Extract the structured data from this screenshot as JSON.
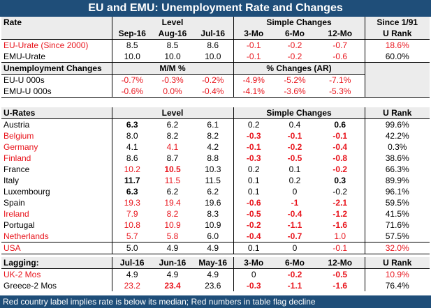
{
  "title": "EU and EMU: Unemployment Rate and Changes",
  "footer": "Red country label implies rate is below its median; Red numbers in table flag decline",
  "colors": {
    "header_bg": "#1f4e79",
    "red": "#e8141c",
    "shade": "#ececec",
    "gray_block": "#7f7f7f"
  },
  "sec1": {
    "h": [
      "Rate",
      "Level",
      "Simple Changes",
      "Since 1/91"
    ],
    "h2": [
      "",
      "Sep-16",
      "Aug-16",
      "Jul-16",
      "3-Mo",
      "6-Mo",
      "12-Mo",
      "U Rank"
    ],
    "rows": [
      [
        "EU-Urate (Since 2000)",
        "8.5",
        "8.5",
        "8.6",
        "-0.1",
        "-0.2",
        "-0.7",
        "18.6%"
      ],
      [
        "EMU-Urate",
        "10.0",
        "10.0",
        "10.0",
        "-0.1",
        "-0.2",
        "-0.6",
        "60.0%"
      ]
    ]
  },
  "sec2": {
    "h": [
      "Unemployment Changes",
      "M/M %",
      "% Changes (AR)"
    ],
    "rows": [
      [
        "EU-U 000s",
        "-0.7%",
        "-0.3%",
        "-0.2%",
        "-4.9%",
        "-5.2%",
        "-7.1%"
      ],
      [
        "EMU-U 000s",
        "-0.6%",
        "0.0%",
        "-0.4%",
        "-4.1%",
        "-3.6%",
        "-5.3%"
      ]
    ]
  },
  "sec3": {
    "h": [
      "U-Rates",
      "Level",
      "Simple Changes",
      "U Rank"
    ],
    "rows": [
      [
        "Austria",
        "6.3",
        "6.2",
        "6.1",
        "0.2",
        "0.4",
        "0.6",
        "99.6%"
      ],
      [
        "Belgium",
        "8.0",
        "8.2",
        "8.2",
        "-0.3",
        "-0.1",
        "-0.1",
        "42.2%"
      ],
      [
        "Germany",
        "4.1",
        "4.1",
        "4.2",
        "-0.1",
        "-0.2",
        "-0.4",
        "0.3%"
      ],
      [
        "Finland",
        "8.6",
        "8.7",
        "8.8",
        "-0.3",
        "-0.5",
        "-0.8",
        "38.6%"
      ],
      [
        "France",
        "10.2",
        "10.5",
        "10.3",
        "0.2",
        "0.1",
        "-0.2",
        "66.3%"
      ],
      [
        "Italy",
        "11.7",
        "11.5",
        "11.5",
        "0.1",
        "0.2",
        "0.3",
        "89.9%"
      ],
      [
        "Luxembourg",
        "6.3",
        "6.2",
        "6.2",
        "0.1",
        "0",
        "-0.2",
        "96.1%"
      ],
      [
        "Spain",
        "19.3",
        "19.4",
        "19.6",
        "-0.6",
        "-1",
        "-2.1",
        "59.5%"
      ],
      [
        "Ireland",
        "7.9",
        "8.2",
        "8.3",
        "-0.5",
        "-0.4",
        "-1.2",
        "41.5%"
      ],
      [
        "Portugal",
        "10.8",
        "10.9",
        "10.9",
        "-0.2",
        "-1.1",
        "-1.6",
        "71.6%"
      ],
      [
        "Netherlands",
        "5.7",
        "5.8",
        "6.0",
        "-0.4",
        "-0.7",
        "1.0",
        "57.5%"
      ],
      [
        "USA",
        "5.0",
        "4.9",
        "4.9",
        "0.1",
        "0",
        "-0.1",
        "32.0%"
      ]
    ]
  },
  "sec4": {
    "h": [
      "Lagging:",
      "Jul-16",
      "Jun-16",
      "May-16",
      "3-Mo",
      "6-Mo",
      "12-Mo",
      "U Rank"
    ],
    "rows": [
      [
        "UK-2 Mos",
        "4.9",
        "4.9",
        "4.9",
        "0",
        "-0.2",
        "-0.5",
        "10.9%"
      ],
      [
        "Greece-2 Mos",
        "23.2",
        "23.4",
        "23.6",
        "-0.3",
        "-1.1",
        "-1.6",
        "76.4%"
      ]
    ]
  }
}
